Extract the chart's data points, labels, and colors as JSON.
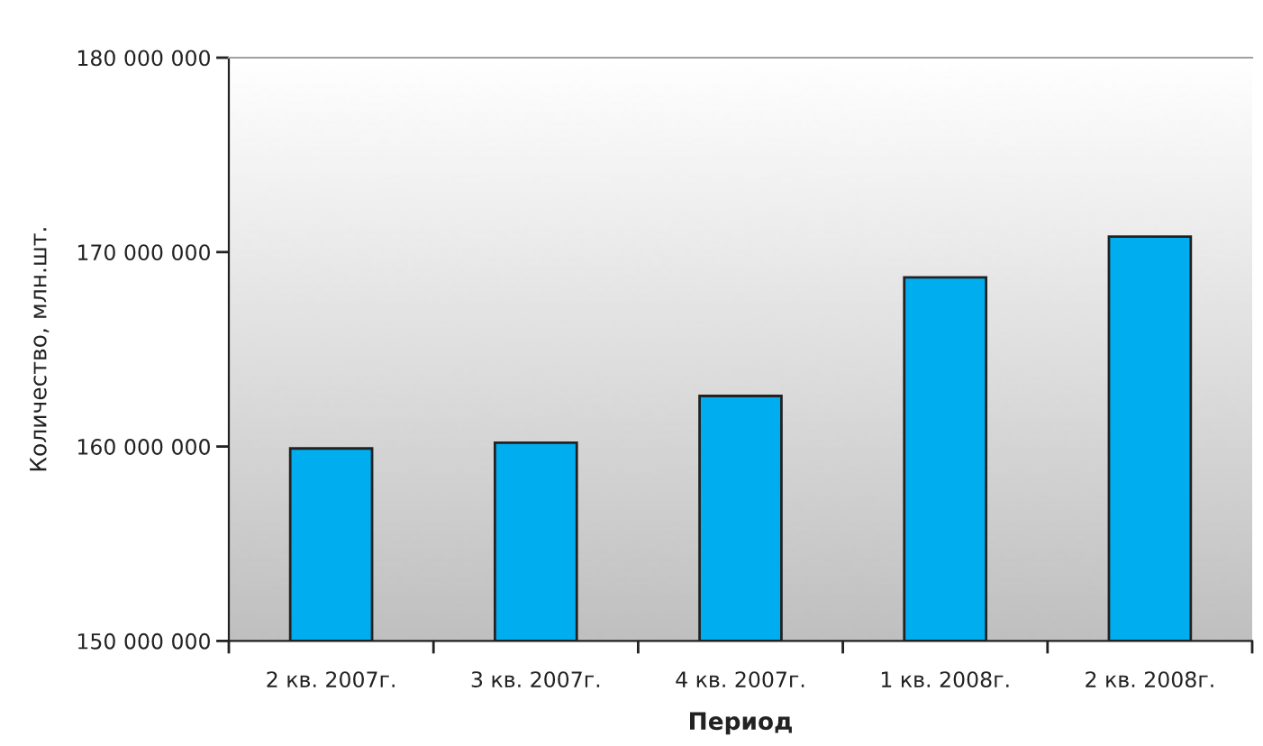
{
  "chart_data": {
    "type": "bar",
    "xlabel": "Период",
    "ylabel": "Количество, млн.шт.",
    "categories": [
      "2 кв. 2007г.",
      "3 кв. 2007г.",
      "4 кв. 2007г.",
      "1 кв. 2008г.",
      "2 кв. 2008г."
    ],
    "values": [
      159900000,
      160200000,
      162600000,
      168700000,
      170800000
    ],
    "color": "#00aeef",
    "ylim": [
      150000000,
      180000000
    ],
    "yticks": [
      {
        "value": 150000000,
        "label": "150 000 000"
      },
      {
        "value": 160000000,
        "label": "160 000 000"
      },
      {
        "value": 170000000,
        "label": "170 000 000"
      },
      {
        "value": 180000000,
        "label": "180 000 000"
      }
    ],
    "grid": false,
    "legend": false
  }
}
